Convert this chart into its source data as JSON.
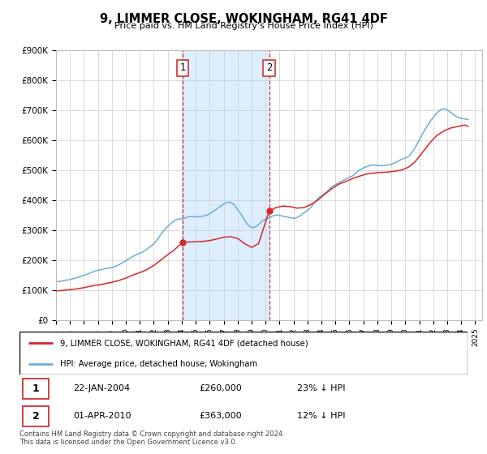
{
  "title": "9, LIMMER CLOSE, WOKINGHAM, RG41 4DF",
  "subtitle": "Price paid vs. HM Land Registry's House Price Index (HPI)",
  "ylim": [
    0,
    900000
  ],
  "yticks": [
    0,
    100000,
    200000,
    300000,
    400000,
    500000,
    600000,
    700000,
    800000,
    900000
  ],
  "ytick_labels": [
    "£0",
    "£100K",
    "£200K",
    "£300K",
    "£400K",
    "£500K",
    "£600K",
    "£700K",
    "£800K",
    "£900K"
  ],
  "hpi_color": "#6baed6",
  "price_color": "#d62728",
  "highlight_color": "#ddeeff",
  "highlight_edge_color": "#cc3333",
  "purchase1_year": 2004.06,
  "purchase1_price": 260000,
  "purchase2_year": 2010.25,
  "purchase2_price": 363000,
  "legend1_label": "9, LIMMER CLOSE, WOKINGHAM, RG41 4DF (detached house)",
  "legend2_label": "HPI: Average price, detached house, Wokingham",
  "annotation1_label": "1",
  "annotation2_label": "2",
  "table_row1": [
    "1",
    "22-JAN-2004",
    "£260,000",
    "23% ↓ HPI"
  ],
  "table_row2": [
    "2",
    "01-APR-2010",
    "£363,000",
    "12% ↓ HPI"
  ],
  "footer": "Contains HM Land Registry data © Crown copyright and database right 2024.\nThis data is licensed under the Open Government Licence v3.0.",
  "hpi_data_years": [
    1995,
    1995.25,
    1995.5,
    1995.75,
    1996,
    1996.25,
    1996.5,
    1996.75,
    1997,
    1997.25,
    1997.5,
    1997.75,
    1998,
    1998.25,
    1998.5,
    1998.75,
    1999,
    1999.25,
    1999.5,
    1999.75,
    2000,
    2000.25,
    2000.5,
    2000.75,
    2001,
    2001.25,
    2001.5,
    2001.75,
    2002,
    2002.25,
    2002.5,
    2002.75,
    2003,
    2003.25,
    2003.5,
    2003.75,
    2004,
    2004.25,
    2004.5,
    2004.75,
    2005,
    2005.25,
    2005.5,
    2005.75,
    2006,
    2006.25,
    2006.5,
    2006.75,
    2007,
    2007.25,
    2007.5,
    2007.75,
    2008,
    2008.25,
    2008.5,
    2008.75,
    2009,
    2009.25,
    2009.5,
    2009.75,
    2010,
    2010.25,
    2010.5,
    2010.75,
    2011,
    2011.25,
    2011.5,
    2011.75,
    2012,
    2012.25,
    2012.5,
    2012.75,
    2013,
    2013.25,
    2013.5,
    2013.75,
    2014,
    2014.25,
    2014.5,
    2014.75,
    2015,
    2015.25,
    2015.5,
    2015.75,
    2016,
    2016.25,
    2016.5,
    2016.75,
    2017,
    2017.25,
    2017.5,
    2017.75,
    2018,
    2018.25,
    2018.5,
    2018.75,
    2019,
    2019.25,
    2019.5,
    2019.75,
    2020,
    2020.25,
    2020.5,
    2020.75,
    2021,
    2021.25,
    2021.5,
    2021.75,
    2022,
    2022.25,
    2022.5,
    2022.75,
    2023,
    2023.25,
    2023.5,
    2023.75,
    2024,
    2024.25,
    2024.5
  ],
  "hpi_data_values": [
    128000,
    129000,
    131000,
    133000,
    135000,
    138000,
    141000,
    145000,
    149000,
    153000,
    158000,
    163000,
    166000,
    168000,
    171000,
    173000,
    175000,
    179000,
    184000,
    191000,
    198000,
    205000,
    212000,
    218000,
    222000,
    228000,
    236000,
    245000,
    254000,
    268000,
    285000,
    300000,
    312000,
    323000,
    332000,
    337000,
    337000,
    340000,
    345000,
    345000,
    344000,
    344000,
    346000,
    349000,
    354000,
    362000,
    370000,
    378000,
    386000,
    392000,
    393000,
    384000,
    368000,
    352000,
    333000,
    316000,
    308000,
    310000,
    318000,
    330000,
    336000,
    340000,
    347000,
    350000,
    349000,
    346000,
    344000,
    341000,
    339000,
    342000,
    348000,
    358000,
    365000,
    376000,
    391000,
    405000,
    415000,
    422000,
    433000,
    444000,
    451000,
    458000,
    464000,
    470000,
    476000,
    481000,
    492000,
    500000,
    507000,
    511000,
    516000,
    517000,
    515000,
    514000,
    515000,
    517000,
    519000,
    524000,
    530000,
    536000,
    540000,
    546000,
    560000,
    578000,
    600000,
    622000,
    642000,
    660000,
    675000,
    690000,
    700000,
    705000,
    700000,
    692000,
    683000,
    676000,
    672000,
    670000,
    668000
  ],
  "price_data_years": [
    1995,
    1995.5,
    1996,
    1996.5,
    1997,
    1997.5,
    1998,
    1998.5,
    1999,
    1999.5,
    2000,
    2000.5,
    2001,
    2001.5,
    2002,
    2002.5,
    2003,
    2003.5,
    2004.06,
    2004.5,
    2005,
    2005.5,
    2006,
    2006.5,
    2007,
    2007.5,
    2008,
    2008.5,
    2009,
    2009.5,
    2010.25,
    2010.75,
    2011.25,
    2011.75,
    2012.25,
    2012.75,
    2013.25,
    2013.75,
    2014.25,
    2014.75,
    2015.25,
    2015.75,
    2016.25,
    2016.75,
    2017.25,
    2017.75,
    2018.25,
    2018.75,
    2019.25,
    2019.75,
    2020.25,
    2020.75,
    2021.25,
    2021.75,
    2022.25,
    2022.75,
    2023.25,
    2023.75,
    2024.25,
    2024.5
  ],
  "price_data_values": [
    97000,
    99000,
    101000,
    104000,
    108000,
    113000,
    117000,
    121000,
    126000,
    132000,
    140000,
    150000,
    158000,
    168000,
    182000,
    200000,
    218000,
    235000,
    260000,
    260000,
    261000,
    262000,
    265000,
    270000,
    276000,
    278000,
    272000,
    255000,
    242000,
    255000,
    363000,
    375000,
    380000,
    378000,
    373000,
    375000,
    385000,
    400000,
    420000,
    438000,
    453000,
    462000,
    472000,
    480000,
    487000,
    490000,
    492000,
    493000,
    496000,
    500000,
    510000,
    530000,
    560000,
    590000,
    615000,
    630000,
    640000,
    645000,
    650000,
    645000
  ]
}
